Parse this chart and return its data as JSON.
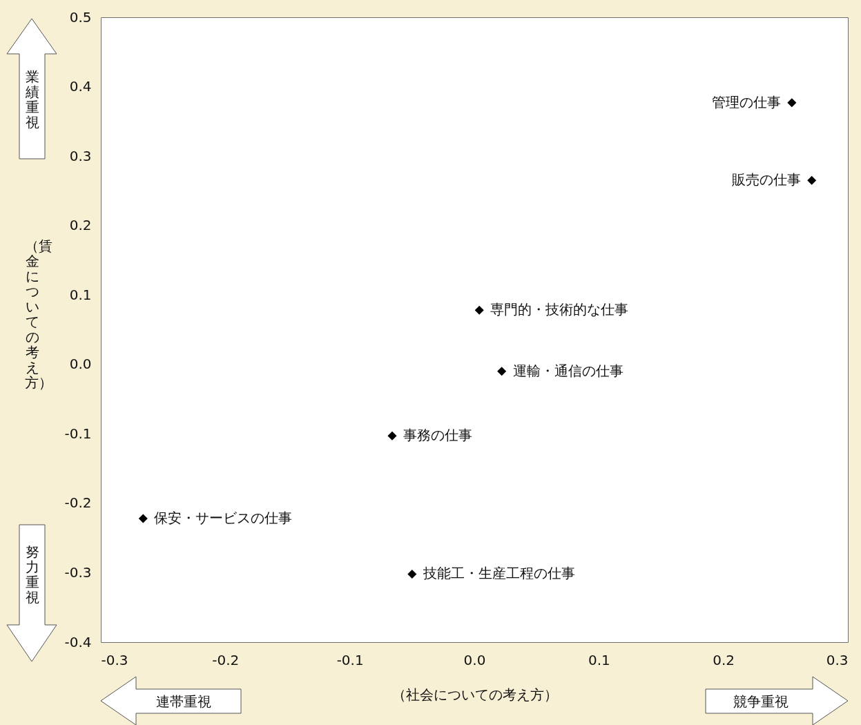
{
  "chart_data": {
    "type": "scatter",
    "xlabel": "（社会についての考え方）",
    "ylabel": "（賃金についての考え方）",
    "x": [
      0.255,
      0.271,
      0.004,
      0.022,
      -0.066,
      -0.266,
      -0.05
    ],
    "series": [
      {
        "color": "#000000",
        "values": [
          0.377,
          0.265,
          0.078,
          -0.01,
          -0.103,
          -0.222,
          -0.302
        ]
      }
    ],
    "marker": "diamond",
    "grid": false,
    "xlim": [
      -0.3,
      0.3
    ],
    "xticks": [
      -0.3,
      -0.2,
      -0.1,
      {
        "value": 0,
        "label": "0.0"
      },
      0.1,
      0.2,
      0.3
    ],
    "ylim": [
      -0.4,
      0.5
    ],
    "yticks": [
      -0.4,
      -0.3,
      -0.2,
      -0.1,
      {
        "value": 0,
        "label": "0.0"
      },
      0.1,
      0.2,
      0.3,
      0.4,
      0.5
    ],
    "annotations": [
      {
        "text": "管理の仕事",
        "x": 0.255,
        "y": 0.377
      },
      {
        "text": "販売の仕事",
        "x": 0.271,
        "y": 0.265
      },
      {
        "text": "専門的・技術的な仕事",
        "x": 0.004,
        "y": 0.078
      },
      {
        "text": "運輸・通信の仕事",
        "x": 0.022,
        "y": -0.01
      },
      {
        "text": "事務の仕事",
        "x": -0.066,
        "y": -0.103
      },
      {
        "text": "保安・サービスの仕事",
        "x": -0.266,
        "y": -0.222
      },
      {
        "text": "技能工・生産工程の仕事",
        "x": -0.05,
        "y": -0.302
      },
      "業績重視",
      "努力重視",
      "連帯重視",
      "競争重視"
    ]
  }
}
